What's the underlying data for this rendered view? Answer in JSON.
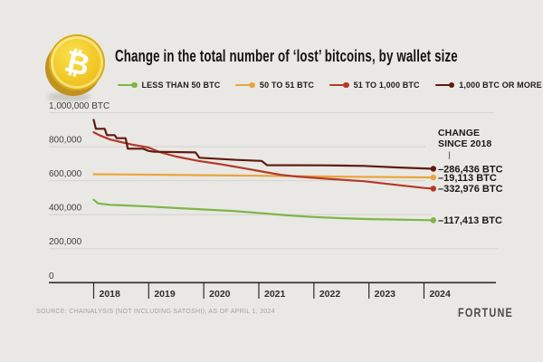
{
  "page": {
    "title": "Change in the total number of ‘lost’ bitcoins, by wallet size",
    "source": "SOURCE: CHAINALYSIS (NOT INCLUDING SATOSHI); AS OF APRIL 1, 2024",
    "brand": "FORTUNE",
    "coin_glyph": "₿"
  },
  "annotations": {
    "header": "CHANGE\nSINCE 2018"
  },
  "legend": {
    "items": [
      {
        "label": "LESS THAN 50 BTC"
      },
      {
        "label": "50 TO 51 BTC"
      },
      {
        "label": "51 TO 1,000 BTC"
      },
      {
        "label": "1,000 BTC OR MORE"
      }
    ]
  },
  "chart_data": {
    "type": "line",
    "title": "Change in the total number of ‘lost’ bitcoins, by wallet size",
    "xlabel": "",
    "ylabel": "BTC",
    "legend_position": "top",
    "grid": true,
    "x_axis": {
      "ticks": [
        "2018",
        "2019",
        "2020",
        "2021",
        "2022",
        "2023",
        "2024"
      ],
      "range": [
        2018,
        2024.3
      ]
    },
    "y_axis": {
      "range": [
        0,
        1000000
      ],
      "ticks": [
        {
          "value": 1000000,
          "label": "1,000,000 BTC"
        },
        {
          "value": 800000,
          "label": "800,000"
        },
        {
          "value": 600000,
          "label": "600,000"
        },
        {
          "value": 400000,
          "label": "400,000"
        },
        {
          "value": 200000,
          "label": "200,000"
        },
        {
          "value": 0,
          "label": "0"
        }
      ]
    },
    "series": [
      {
        "name": "LESS THAN 50 BTC",
        "color": "#7eb547",
        "change_since_2018": "–117,413 BTC",
        "points": [
          [
            2018.0,
            488000
          ],
          [
            2018.08,
            466000
          ],
          [
            2018.3,
            458000
          ],
          [
            2019.0,
            448000
          ],
          [
            2019.5,
            439000
          ],
          [
            2020.0,
            430000
          ],
          [
            2020.5,
            422000
          ],
          [
            2021.0,
            410000
          ],
          [
            2021.5,
            396000
          ],
          [
            2022.0,
            386000
          ],
          [
            2022.5,
            379000
          ],
          [
            2023.0,
            374000
          ],
          [
            2023.5,
            371000
          ],
          [
            2024.0,
            368000
          ],
          [
            2024.17,
            367000
          ]
        ]
      },
      {
        "name": "50 TO 51 BTC",
        "color": "#e8a63c",
        "change_since_2018": "–19,113 BTC",
        "points": [
          [
            2018.0,
            638000
          ],
          [
            2019.0,
            635000
          ],
          [
            2020.0,
            632000
          ],
          [
            2021.0,
            629000
          ],
          [
            2022.0,
            625000
          ],
          [
            2023.0,
            622000
          ],
          [
            2024.0,
            619500
          ],
          [
            2024.17,
            619000
          ]
        ]
      },
      {
        "name": "51 TO 1,000 BTC",
        "color": "#b23a28",
        "change_since_2018": "–332,976 BTC",
        "points": [
          [
            2018.0,
            885000
          ],
          [
            2018.1,
            868000
          ],
          [
            2018.3,
            842000
          ],
          [
            2018.5,
            827000
          ],
          [
            2018.7,
            812000
          ],
          [
            2019.0,
            795000
          ],
          [
            2019.2,
            768000
          ],
          [
            2019.5,
            742000
          ],
          [
            2019.9,
            716000
          ],
          [
            2020.3,
            697000
          ],
          [
            2020.8,
            669000
          ],
          [
            2021.1,
            651000
          ],
          [
            2021.4,
            634000
          ],
          [
            2021.7,
            624000
          ],
          [
            2022.2,
            612000
          ],
          [
            2022.9,
            597000
          ],
          [
            2023.5,
            575000
          ],
          [
            2024.0,
            557000
          ],
          [
            2024.17,
            553000
          ]
        ]
      },
      {
        "name": "1,000 BTC OR MORE",
        "color": "#5f1b10",
        "change_since_2018": "–286,436 BTC",
        "points": [
          [
            2018.0,
            958000
          ],
          [
            2018.04,
            905000
          ],
          [
            2018.2,
            905000
          ],
          [
            2018.24,
            868000
          ],
          [
            2018.38,
            868000
          ],
          [
            2018.42,
            850000
          ],
          [
            2018.58,
            850000
          ],
          [
            2018.62,
            788000
          ],
          [
            2018.9,
            788000
          ],
          [
            2019.0,
            775000
          ],
          [
            2019.1,
            770000
          ],
          [
            2019.85,
            766000
          ],
          [
            2019.92,
            735000
          ],
          [
            2020.6,
            722000
          ],
          [
            2021.05,
            716000
          ],
          [
            2021.15,
            691000
          ],
          [
            2022.2,
            690000
          ],
          [
            2022.9,
            687000
          ],
          [
            2023.5,
            678000
          ],
          [
            2024.0,
            672000
          ],
          [
            2024.17,
            670000
          ]
        ]
      }
    ]
  }
}
